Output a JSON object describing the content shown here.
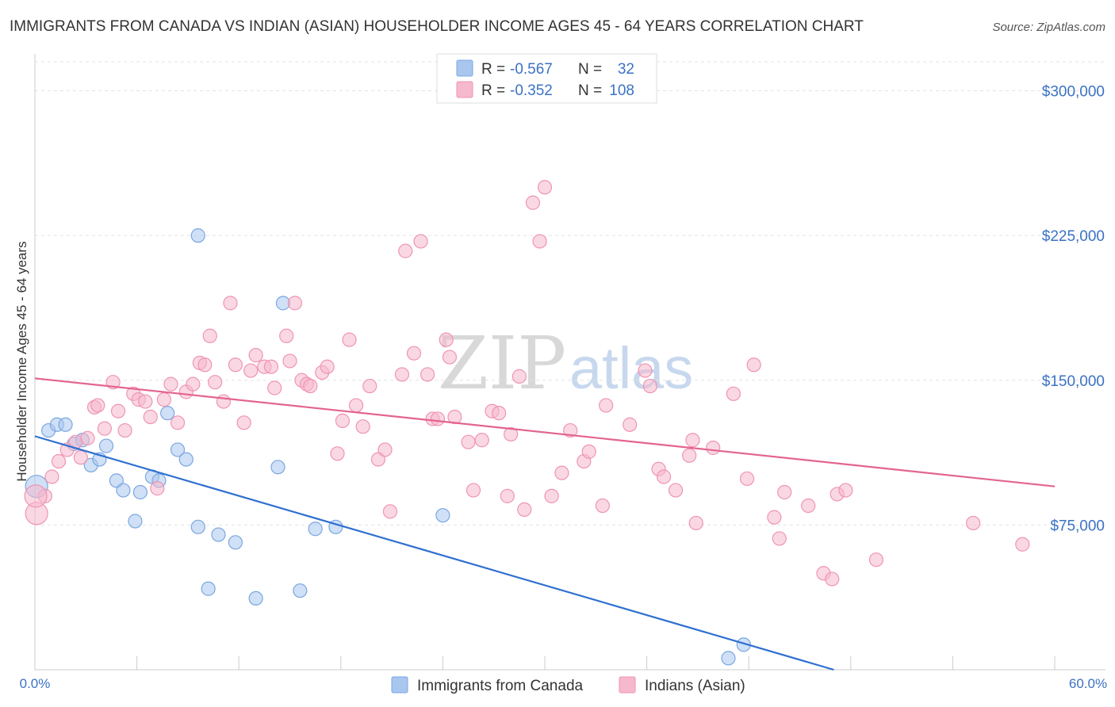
{
  "title": "IMMIGRANTS FROM CANADA VS INDIAN (ASIAN) HOUSEHOLDER INCOME AGES 45 - 64 YEARS CORRELATION CHART",
  "source": "Source: ZipAtlas.com",
  "watermark": {
    "zip": "ZIP",
    "atlas": "atlas"
  },
  "legend_box": {
    "rows": [
      {
        "r_label": "R =",
        "r_value": "-0.567",
        "n_label": "N =",
        "n_value": "32",
        "color": "#a9c6ef"
      },
      {
        "r_label": "R =",
        "r_value": "-0.352",
        "n_label": "N =",
        "n_value": "108",
        "color": "#f6b8cc"
      }
    ]
  },
  "bottom_legend": [
    {
      "label": "Immigrants from Canada",
      "color": "#a9c6ef"
    },
    {
      "label": "Indians (Asian)",
      "color": "#f6b8cc"
    }
  ],
  "chart_data": {
    "type": "scatter",
    "title": "IMMIGRANTS FROM CANADA VS INDIAN (ASIAN) HOUSEHOLDER INCOME AGES 45 - 64 YEARS CORRELATION CHART",
    "xlabel": "",
    "ylabel": "Householder Income Ages 45 - 64 years",
    "xlim": [
      0,
      60
    ],
    "ylim": [
      0,
      315000
    ],
    "x_tick_labels": [
      "0.0%",
      "60.0%"
    ],
    "y_ticks": [
      75000,
      150000,
      225000,
      300000
    ],
    "y_tick_labels": [
      "$75,000",
      "$150,000",
      "$225,000",
      "$300,000"
    ],
    "grid": true,
    "legend_position": "top-center",
    "series": [
      {
        "name": "Immigrants from Canada",
        "color": "#a9c6ef",
        "stroke": "#7aa7e0",
        "trend_color": "#2f70d0",
        "trend": {
          "x": [
            0,
            47
          ],
          "y": [
            121000,
            0
          ]
        },
        "points": [
          [
            0.1,
            95000
          ],
          [
            0.8,
            124000
          ],
          [
            1.3,
            127000
          ],
          [
            1.8,
            127000
          ],
          [
            2.3,
            117000
          ],
          [
            2.8,
            119000
          ],
          [
            3.3,
            106000
          ],
          [
            3.8,
            109000
          ],
          [
            4.2,
            116000
          ],
          [
            4.8,
            98000
          ],
          [
            5.2,
            93000
          ],
          [
            5.9,
            77000
          ],
          [
            6.2,
            92000
          ],
          [
            6.9,
            100000
          ],
          [
            7.3,
            98000
          ],
          [
            7.8,
            133000
          ],
          [
            8.4,
            114000
          ],
          [
            8.9,
            109000
          ],
          [
            9.6,
            225000
          ],
          [
            9.6,
            74000
          ],
          [
            10.2,
            42000
          ],
          [
            10.8,
            70000
          ],
          [
            11.8,
            66000
          ],
          [
            13.0,
            37000
          ],
          [
            14.3,
            105000
          ],
          [
            14.6,
            190000
          ],
          [
            15.6,
            41000
          ],
          [
            16.5,
            73000
          ],
          [
            17.7,
            74000
          ],
          [
            24.0,
            80000
          ],
          [
            40.8,
            6000
          ],
          [
            41.7,
            13000
          ]
        ]
      },
      {
        "name": "Indians (Asian)",
        "color": "#f6b8cc",
        "stroke": "#ef94b2",
        "trend_color": "#e3648f",
        "trend": {
          "x": [
            0,
            60
          ],
          "y": [
            151000,
            95000
          ]
        },
        "points": [
          [
            0.1,
            81000
          ],
          [
            0.6,
            90000
          ],
          [
            1.0,
            100000
          ],
          [
            1.4,
            108000
          ],
          [
            1.9,
            114000
          ],
          [
            2.4,
            118000
          ],
          [
            2.7,
            110000
          ],
          [
            3.1,
            120000
          ],
          [
            3.5,
            136000
          ],
          [
            3.7,
            137000
          ],
          [
            4.1,
            125000
          ],
          [
            4.6,
            149000
          ],
          [
            4.9,
            134000
          ],
          [
            5.3,
            124000
          ],
          [
            5.8,
            143000
          ],
          [
            6.1,
            140000
          ],
          [
            6.5,
            139000
          ],
          [
            6.8,
            131000
          ],
          [
            7.2,
            94000
          ],
          [
            7.6,
            140000
          ],
          [
            8.0,
            148000
          ],
          [
            8.4,
            128000
          ],
          [
            8.9,
            144000
          ],
          [
            9.3,
            148000
          ],
          [
            9.7,
            159000
          ],
          [
            10.0,
            158000
          ],
          [
            10.3,
            173000
          ],
          [
            10.6,
            149000
          ],
          [
            11.1,
            139000
          ],
          [
            11.5,
            190000
          ],
          [
            11.8,
            158000
          ],
          [
            12.3,
            128000
          ],
          [
            12.7,
            155000
          ],
          [
            13.0,
            163000
          ],
          [
            13.5,
            157000
          ],
          [
            13.9,
            157000
          ],
          [
            14.1,
            146000
          ],
          [
            14.8,
            173000
          ],
          [
            15.0,
            160000
          ],
          [
            15.3,
            190000
          ],
          [
            15.7,
            150000
          ],
          [
            16.0,
            148000
          ],
          [
            16.2,
            147000
          ],
          [
            16.9,
            154000
          ],
          [
            17.2,
            157000
          ],
          [
            17.8,
            112000
          ],
          [
            18.1,
            129000
          ],
          [
            18.5,
            171000
          ],
          [
            18.9,
            137000
          ],
          [
            19.3,
            126000
          ],
          [
            19.7,
            147000
          ],
          [
            20.2,
            109000
          ],
          [
            20.6,
            114000
          ],
          [
            20.9,
            82000
          ],
          [
            21.6,
            153000
          ],
          [
            21.8,
            217000
          ],
          [
            22.3,
            164000
          ],
          [
            22.7,
            222000
          ],
          [
            23.1,
            153000
          ],
          [
            23.4,
            130000
          ],
          [
            23.7,
            130000
          ],
          [
            24.2,
            171000
          ],
          [
            24.4,
            162000
          ],
          [
            24.7,
            131000
          ],
          [
            25.5,
            118000
          ],
          [
            25.8,
            93000
          ],
          [
            26.3,
            119000
          ],
          [
            26.9,
            134000
          ],
          [
            27.3,
            133000
          ],
          [
            27.8,
            90000
          ],
          [
            28.0,
            122000
          ],
          [
            28.5,
            152000
          ],
          [
            28.8,
            83000
          ],
          [
            29.3,
            242000
          ],
          [
            29.7,
            222000
          ],
          [
            30.0,
            250000
          ],
          [
            30.4,
            90000
          ],
          [
            31.0,
            102000
          ],
          [
            31.5,
            124000
          ],
          [
            32.3,
            108000
          ],
          [
            32.6,
            113000
          ],
          [
            33.4,
            85000
          ],
          [
            33.6,
            137000
          ],
          [
            35.0,
            127000
          ],
          [
            35.9,
            155000
          ],
          [
            36.2,
            147000
          ],
          [
            36.7,
            104000
          ],
          [
            37.0,
            100000
          ],
          [
            37.7,
            93000
          ],
          [
            38.5,
            111000
          ],
          [
            38.7,
            119000
          ],
          [
            38.9,
            76000
          ],
          [
            39.9,
            115000
          ],
          [
            41.1,
            143000
          ],
          [
            41.9,
            99000
          ],
          [
            42.3,
            158000
          ],
          [
            43.5,
            79000
          ],
          [
            43.8,
            68000
          ],
          [
            44.1,
            92000
          ],
          [
            45.5,
            85000
          ],
          [
            46.4,
            50000
          ],
          [
            46.9,
            47000
          ],
          [
            47.2,
            91000
          ],
          [
            47.7,
            93000
          ],
          [
            49.5,
            57000
          ],
          [
            55.2,
            76000
          ],
          [
            58.1,
            65000
          ],
          [
            0.05,
            90000
          ]
        ]
      }
    ]
  }
}
